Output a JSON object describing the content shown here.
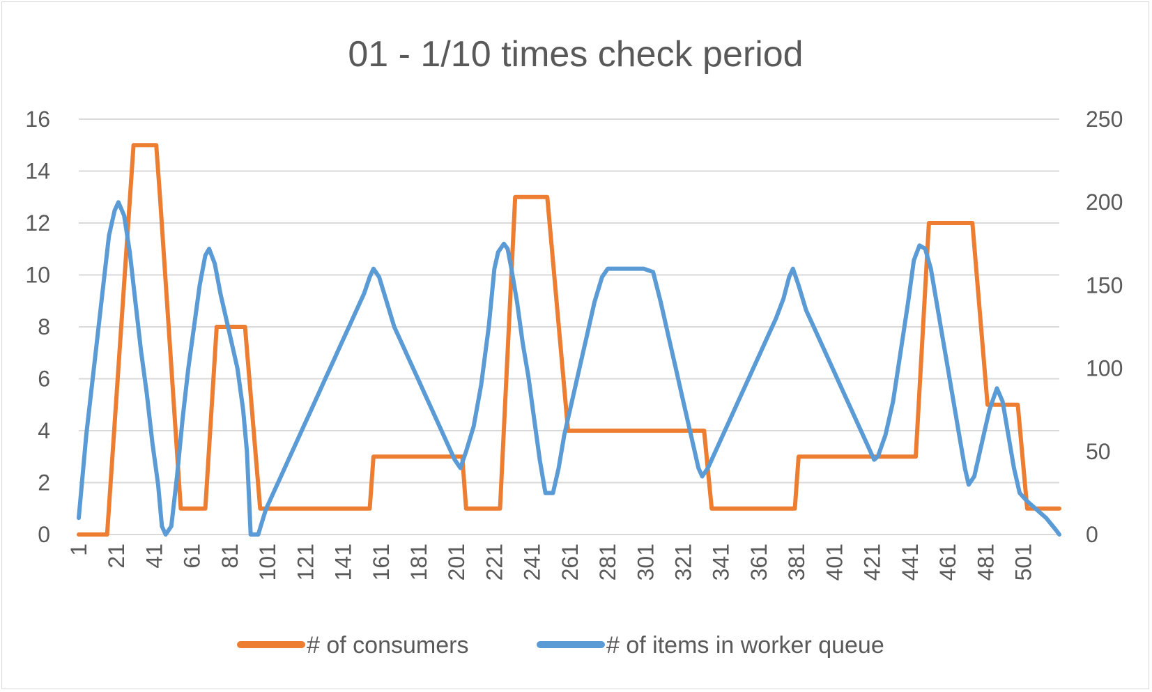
{
  "chart_data": {
    "type": "line",
    "title": "01 - 1/10 times check period",
    "legend_position": "bottom",
    "grid": true,
    "x_tick_labels": [
      "1",
      "21",
      "41",
      "61",
      "81",
      "101",
      "121",
      "141",
      "161",
      "181",
      "201",
      "221",
      "241",
      "261",
      "281",
      "301",
      "321",
      "341",
      "361",
      "381",
      "401",
      "421",
      "441",
      "461",
      "481",
      "501"
    ],
    "x_range": [
      1,
      520
    ],
    "y_left": {
      "range": [
        0,
        16
      ],
      "ticks": [
        "0",
        "2",
        "4",
        "6",
        "8",
        "10",
        "12",
        "14",
        "16"
      ]
    },
    "y_right": {
      "range": [
        0,
        250
      ],
      "ticks": [
        "0",
        "50",
        "100",
        "150",
        "200",
        "250"
      ]
    },
    "colors": {
      "consumers": "#ED7D31",
      "queue": "#5B9BD5",
      "grid": "#d9d9d9"
    },
    "series": [
      {
        "name": "# of consumers",
        "axis": "left",
        "points": [
          [
            1,
            0
          ],
          [
            16,
            0
          ],
          [
            30,
            15
          ],
          [
            42,
            15
          ],
          [
            44,
            13
          ],
          [
            55,
            1
          ],
          [
            68,
            1
          ],
          [
            74,
            8
          ],
          [
            89,
            8
          ],
          [
            97,
            1
          ],
          [
            155,
            1
          ],
          [
            157,
            3
          ],
          [
            204,
            3
          ],
          [
            206,
            1
          ],
          [
            224,
            1
          ],
          [
            232,
            13
          ],
          [
            249,
            13
          ],
          [
            260,
            4
          ],
          [
            332,
            4
          ],
          [
            336,
            1
          ],
          [
            380,
            1
          ],
          [
            382,
            3
          ],
          [
            444,
            3
          ],
          [
            451,
            12
          ],
          [
            474,
            12
          ],
          [
            482,
            5
          ],
          [
            498,
            5
          ],
          [
            503,
            1
          ],
          [
            520,
            1
          ]
        ]
      },
      {
        "name": "# of items in worker queue",
        "axis": "right",
        "points": [
          [
            1,
            10
          ],
          [
            5,
            60
          ],
          [
            10,
            110
          ],
          [
            14,
            150
          ],
          [
            17,
            180
          ],
          [
            20,
            195
          ],
          [
            22,
            200
          ],
          [
            25,
            192
          ],
          [
            28,
            170
          ],
          [
            31,
            140
          ],
          [
            34,
            110
          ],
          [
            37,
            85
          ],
          [
            40,
            55
          ],
          [
            43,
            30
          ],
          [
            45,
            5
          ],
          [
            47,
            0
          ],
          [
            50,
            5
          ],
          [
            53,
            35
          ],
          [
            56,
            70
          ],
          [
            59,
            100
          ],
          [
            62,
            125
          ],
          [
            65,
            150
          ],
          [
            68,
            168
          ],
          [
            70,
            172
          ],
          [
            73,
            163
          ],
          [
            76,
            145
          ],
          [
            79,
            130
          ],
          [
            82,
            115
          ],
          [
            85,
            100
          ],
          [
            88,
            75
          ],
          [
            90,
            50
          ],
          [
            92,
            0
          ],
          [
            96,
            0
          ],
          [
            100,
            15
          ],
          [
            104,
            25
          ],
          [
            108,
            35
          ],
          [
            112,
            45
          ],
          [
            116,
            55
          ],
          [
            120,
            65
          ],
          [
            124,
            75
          ],
          [
            128,
            85
          ],
          [
            132,
            95
          ],
          [
            136,
            105
          ],
          [
            140,
            115
          ],
          [
            144,
            125
          ],
          [
            148,
            135
          ],
          [
            152,
            145
          ],
          [
            155,
            155
          ],
          [
            157,
            160
          ],
          [
            160,
            155
          ],
          [
            164,
            140
          ],
          [
            168,
            125
          ],
          [
            172,
            115
          ],
          [
            176,
            105
          ],
          [
            180,
            95
          ],
          [
            184,
            85
          ],
          [
            188,
            75
          ],
          [
            192,
            65
          ],
          [
            196,
            55
          ],
          [
            200,
            45
          ],
          [
            203,
            40
          ],
          [
            206,
            50
          ],
          [
            210,
            65
          ],
          [
            214,
            90
          ],
          [
            218,
            125
          ],
          [
            221,
            160
          ],
          [
            223,
            170
          ],
          [
            226,
            175
          ],
          [
            228,
            172
          ],
          [
            230,
            160
          ],
          [
            233,
            140
          ],
          [
            236,
            115
          ],
          [
            239,
            95
          ],
          [
            242,
            70
          ],
          [
            245,
            45
          ],
          [
            248,
            25
          ],
          [
            252,
            25
          ],
          [
            255,
            40
          ],
          [
            258,
            60
          ],
          [
            262,
            80
          ],
          [
            266,
            100
          ],
          [
            270,
            120
          ],
          [
            274,
            140
          ],
          [
            278,
            155
          ],
          [
            281,
            160
          ],
          [
            285,
            160
          ],
          [
            290,
            160
          ],
          [
            295,
            160
          ],
          [
            300,
            160
          ],
          [
            305,
            158
          ],
          [
            309,
            140
          ],
          [
            313,
            120
          ],
          [
            317,
            100
          ],
          [
            321,
            80
          ],
          [
            325,
            60
          ],
          [
            329,
            40
          ],
          [
            331,
            35
          ],
          [
            334,
            40
          ],
          [
            338,
            50
          ],
          [
            342,
            60
          ],
          [
            346,
            70
          ],
          [
            350,
            80
          ],
          [
            354,
            90
          ],
          [
            358,
            100
          ],
          [
            362,
            110
          ],
          [
            366,
            120
          ],
          [
            370,
            130
          ],
          [
            374,
            142
          ],
          [
            377,
            155
          ],
          [
            379,
            160
          ],
          [
            382,
            150
          ],
          [
            386,
            135
          ],
          [
            390,
            125
          ],
          [
            394,
            115
          ],
          [
            398,
            105
          ],
          [
            402,
            95
          ],
          [
            406,
            85
          ],
          [
            410,
            75
          ],
          [
            414,
            65
          ],
          [
            418,
            55
          ],
          [
            422,
            45
          ],
          [
            424,
            47
          ],
          [
            428,
            60
          ],
          [
            432,
            80
          ],
          [
            436,
            110
          ],
          [
            440,
            140
          ],
          [
            443,
            165
          ],
          [
            446,
            174
          ],
          [
            449,
            172
          ],
          [
            452,
            160
          ],
          [
            455,
            140
          ],
          [
            458,
            120
          ],
          [
            461,
            100
          ],
          [
            464,
            80
          ],
          [
            467,
            60
          ],
          [
            470,
            40
          ],
          [
            472,
            30
          ],
          [
            475,
            35
          ],
          [
            479,
            55
          ],
          [
            483,
            75
          ],
          [
            487,
            88
          ],
          [
            490,
            80
          ],
          [
            493,
            60
          ],
          [
            496,
            40
          ],
          [
            499,
            25
          ],
          [
            503,
            20
          ],
          [
            508,
            15
          ],
          [
            513,
            10
          ],
          [
            518,
            3
          ],
          [
            520,
            0
          ]
        ]
      }
    ]
  }
}
